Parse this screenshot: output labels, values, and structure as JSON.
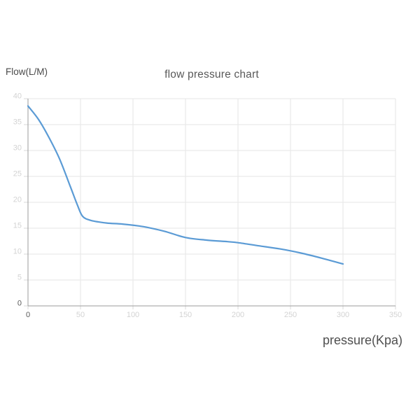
{
  "chart_data": {
    "type": "line",
    "title": "flow pressure chart",
    "xlabel": "pressure(Kpa)",
    "ylabel": "Flow(L/M)",
    "xlim": [
      0,
      350
    ],
    "ylim": [
      0,
      40
    ],
    "x_ticks": [
      0,
      50,
      100,
      150,
      200,
      250,
      300,
      350
    ],
    "y_ticks": [
      0,
      5,
      10,
      15,
      20,
      25,
      30,
      35,
      40
    ],
    "grid": true,
    "legend": false,
    "series": [
      {
        "name": "flow",
        "points": [
          [
            0,
            38.6
          ],
          [
            10,
            36.0
          ],
          [
            20,
            32.5
          ],
          [
            30,
            28.4
          ],
          [
            40,
            23.2
          ],
          [
            47,
            19.5
          ],
          [
            52,
            17.3
          ],
          [
            60,
            16.5
          ],
          [
            75,
            16.0
          ],
          [
            90,
            15.8
          ],
          [
            110,
            15.3
          ],
          [
            130,
            14.4
          ],
          [
            150,
            13.2
          ],
          [
            170,
            12.7
          ],
          [
            190,
            12.4
          ],
          [
            200,
            12.2
          ],
          [
            220,
            11.6
          ],
          [
            240,
            11.0
          ],
          [
            260,
            10.2
          ],
          [
            280,
            9.2
          ],
          [
            300,
            8.1
          ]
        ]
      }
    ]
  },
  "colors": {
    "line": "#5b9bd5",
    "grid": "#e6e6e6",
    "axis": "#9b9b9b",
    "tick_mark": "#d9d9d9",
    "tick_label_faint": "#d3d3d3",
    "tick_label_zero": "#5a5a5a",
    "title": "#595959"
  }
}
